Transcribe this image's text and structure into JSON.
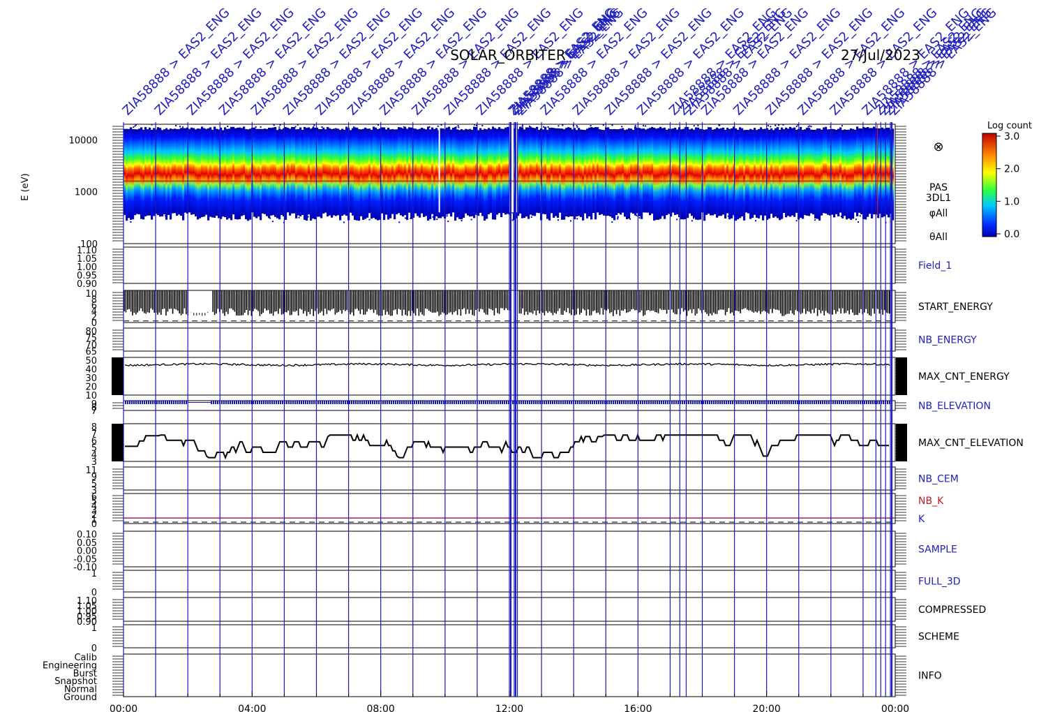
{
  "header": {
    "title": "SOLAR_ORBITER",
    "date": "27/Jul/2023",
    "event_label": "ZIA58888 > EAS2_ENG",
    "event_times_hours": [
      0.0,
      1.0,
      2.0,
      3.0,
      4.0,
      5.0,
      6.0,
      7.0,
      8.0,
      9.0,
      10.0,
      11.0,
      12.0,
      12.05,
      12.15,
      12.25,
      13.0,
      14.0,
      15.0,
      16.0,
      17.0,
      17.3,
      17.5,
      18.0,
      19.0,
      20.0,
      21.0,
      22.0,
      23.0,
      23.4,
      23.55,
      23.7,
      23.85
    ]
  },
  "colorbar": {
    "title": "Log count",
    "ticks": [
      "3.0",
      "2.0",
      "1.0",
      "0.0"
    ],
    "range": [
      0,
      3
    ]
  },
  "chart_data": {
    "type": "stacked-timeseries",
    "x_ticks": [
      "00:00",
      "04:00",
      "08:00",
      "12:00",
      "16:00",
      "20:00",
      "00:00"
    ],
    "x_range_hours": [
      0,
      24
    ],
    "panels": [
      {
        "id": "spectrogram",
        "type": "heatmap",
        "ylabel": "E (eV)",
        "ytick_labels": [
          "10000",
          "1000",
          "100"
        ],
        "ylog": true,
        "yrange": [
          100,
          20000
        ],
        "peak_energy_ev": 1600,
        "labels": [
          "PAS",
          "3DL1",
          "φAll",
          "θAll"
        ],
        "marker": "⊗"
      },
      {
        "id": "field1",
        "type": "line",
        "label": "Field_1",
        "ytick_labels": [
          "1.10",
          "1.05",
          "1.00",
          "0.95",
          "0.90"
        ],
        "values": []
      },
      {
        "id": "start_energy",
        "type": "bar",
        "label": "START_ENERGY",
        "ytick_labels": [
          "10",
          "8",
          "6",
          "4",
          "2",
          "0"
        ],
        "yrange": [
          0,
          10
        ],
        "typical_range": [
          2,
          10
        ]
      },
      {
        "id": "nb_energy",
        "type": "line",
        "label": "NB_ENERGY",
        "ytick_labels": [
          "80",
          "75",
          "70",
          "65"
        ],
        "values": []
      },
      {
        "id": "max_cnt_energy",
        "type": "line",
        "label": "MAX_CNT_ENERGY",
        "ytick_labels": [
          "50",
          "40",
          "30",
          "20",
          "10"
        ],
        "yrange": [
          5,
          52
        ],
        "typical_value": 43
      },
      {
        "id": "nb_elevation",
        "type": "line",
        "label": "NB_ELEVATION",
        "ytick_labels": [
          "9",
          "8",
          "7"
        ],
        "typical_value": 9
      },
      {
        "id": "max_cnt_elevation",
        "type": "line",
        "label": "MAX_CNT_ELEVATION",
        "ytick_labels": [
          "8",
          "7",
          "6",
          "5",
          "4",
          "3"
        ],
        "yrange": [
          3,
          8
        ],
        "typical_range": [
          3.5,
          6.5
        ]
      },
      {
        "id": "nb_cem",
        "type": "line",
        "label": "NB_CEM",
        "ytick_labels": [
          "11",
          "9",
          "5",
          "3"
        ],
        "values": []
      },
      {
        "id": "nb_k",
        "type": "line",
        "labels": [
          "NB_K",
          "K"
        ],
        "ytick_labels": [
          "6",
          "5",
          "4",
          "3",
          "2",
          "1",
          "0"
        ],
        "value": 1
      },
      {
        "id": "sample",
        "type": "line",
        "label": "SAMPLE",
        "ytick_labels": [
          "0.10",
          "0.05",
          "0.00",
          "-0.05",
          "-0.10"
        ],
        "values": []
      },
      {
        "id": "full_3d",
        "type": "line",
        "label": "FULL_3D",
        "ytick_labels": [
          "1",
          "0"
        ],
        "values": []
      },
      {
        "id": "compressed",
        "type": "line",
        "label": "COMPRESSED",
        "ytick_labels": [
          "1.10",
          "1.05",
          "1.00",
          "0.95",
          "0.90"
        ],
        "values": []
      },
      {
        "id": "scheme",
        "type": "line",
        "label": "SCHEME",
        "ytick_labels": [
          "1",
          "0"
        ],
        "values": []
      },
      {
        "id": "info",
        "type": "line",
        "label": "INFO",
        "ytick_labels": [
          "Calib",
          "Engineering",
          "Burst",
          "Snapshot",
          "Normal",
          "Ground"
        ],
        "values": []
      }
    ]
  },
  "colors": {
    "axis": "#000000",
    "event_line": "#1818c0",
    "label_blue": "#2020c0",
    "label_red": "#c02020",
    "k_line": "#a02060"
  }
}
